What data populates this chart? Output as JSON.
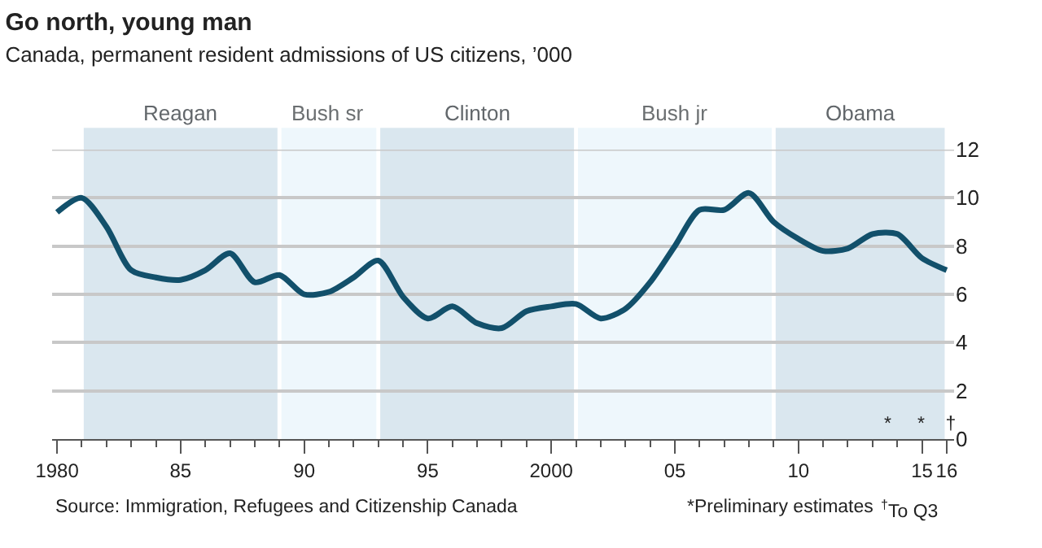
{
  "chart_data": {
    "type": "line",
    "title": "Go north, young man",
    "subtitle": "Canada, permanent resident admissions of US citizens, ’000",
    "x": [
      1980,
      1981,
      1982,
      1983,
      1984,
      1985,
      1986,
      1987,
      1988,
      1989,
      1990,
      1991,
      1992,
      1993,
      1994,
      1995,
      1996,
      1997,
      1998,
      1999,
      2000,
      2001,
      2002,
      2003,
      2004,
      2005,
      2006,
      2007,
      2008,
      2009,
      2010,
      2011,
      2012,
      2013,
      2014,
      2015,
      2016
    ],
    "series": [
      {
        "color": "#12506b",
        "values": [
          9.4,
          10.0,
          8.8,
          7.0,
          6.7,
          6.6,
          7.0,
          7.7,
          6.5,
          6.8,
          6.0,
          6.1,
          6.7,
          7.4,
          5.9,
          5.0,
          5.5,
          4.8,
          4.6,
          5.3,
          5.5,
          5.6,
          5.0,
          5.4,
          6.5,
          8.0,
          9.5,
          9.5,
          10.2,
          9.0,
          8.3,
          7.8,
          7.9,
          8.5,
          8.5,
          7.5,
          7.0
        ]
      }
    ],
    "xlim": [
      1979.8,
      2016.3
    ],
    "ylim": [
      0,
      12
    ],
    "xticks": [
      1980,
      {
        "value": 1985,
        "label": "85"
      },
      {
        "value": 1990,
        "label": "90"
      },
      {
        "value": 1995,
        "label": "95"
      },
      2000,
      {
        "value": 2005,
        "label": "05"
      },
      {
        "value": 2010,
        "label": "10"
      },
      {
        "value": 2015,
        "label": "15"
      },
      {
        "value": 2016,
        "label": "16"
      }
    ],
    "yticks": [
      0,
      2,
      4,
      6,
      8,
      10,
      12
    ],
    "bands": [
      {
        "axis": "x",
        "from": 1981,
        "to": 1989,
        "label": "Reagan",
        "color": "#dae7ef"
      },
      {
        "axis": "x",
        "from": 1989,
        "to": 1993,
        "label": "Bush sr",
        "color": "#eef7fc"
      },
      {
        "axis": "x",
        "from": 1993,
        "to": 2001,
        "label": "Clinton",
        "color": "#dae7ef"
      },
      {
        "axis": "x",
        "from": 2001,
        "to": 2009,
        "label": "Bush jr",
        "color": "#eef7fc"
      },
      {
        "axis": "x",
        "from": 2009,
        "to": 2016,
        "label": "Obama",
        "color": "#dae7ef"
      }
    ],
    "annotations": [
      "*     *    †",
      "Source: Immigration, Refugees and Citizenship Canada",
      "*Preliminary estimates",
      "$^{†}$To Q3"
    ],
    "grid": "y",
    "line_style": "solid",
    "marker": "none"
  }
}
